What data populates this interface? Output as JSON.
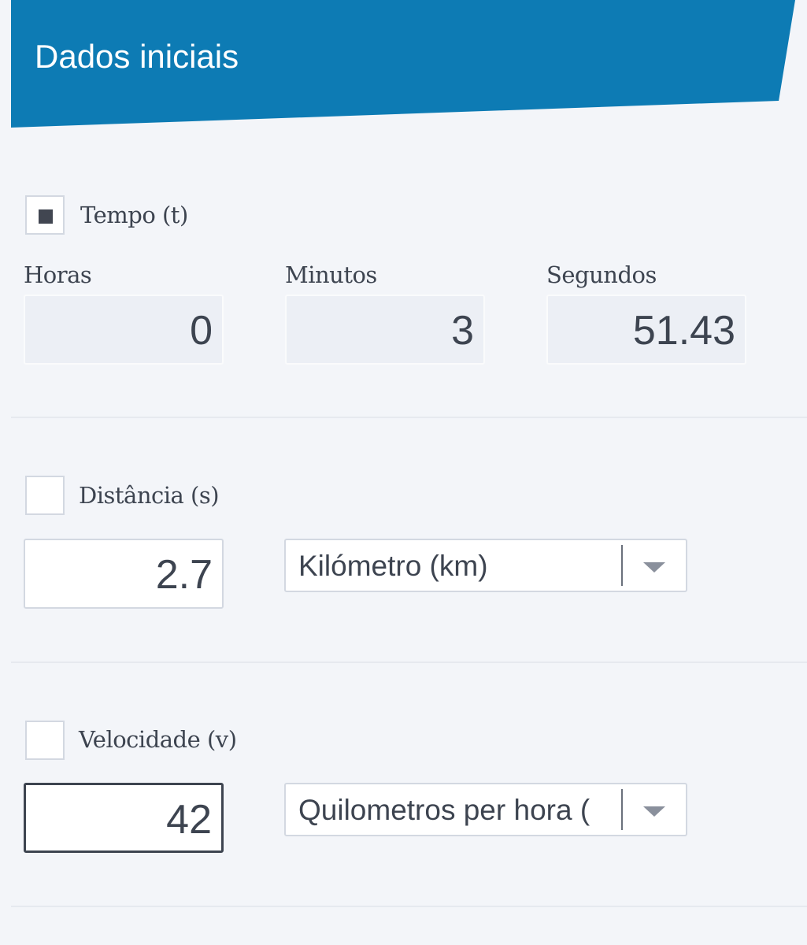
{
  "header": {
    "title": "Dados iniciais"
  },
  "colors": {
    "header_bg": "#0d7bb4",
    "page_bg": "#f3f5f9",
    "text": "#3d4450"
  },
  "time": {
    "label": "Tempo (t)",
    "checked": true,
    "hours_label": "Horas",
    "hours_value": "0",
    "minutes_label": "Minutos",
    "minutes_value": "3",
    "seconds_label": "Segundos",
    "seconds_value": "51.43"
  },
  "distance": {
    "label": "Distância (s)",
    "checked": false,
    "value": "2.7",
    "unit": "Kilómetro (km)",
    "unit_icon": "chevron-down-icon"
  },
  "velocity": {
    "label": "Velocidade (v)",
    "checked": false,
    "value": "42",
    "unit": "Quilometros per hora (",
    "unit_icon": "chevron-down-icon"
  }
}
